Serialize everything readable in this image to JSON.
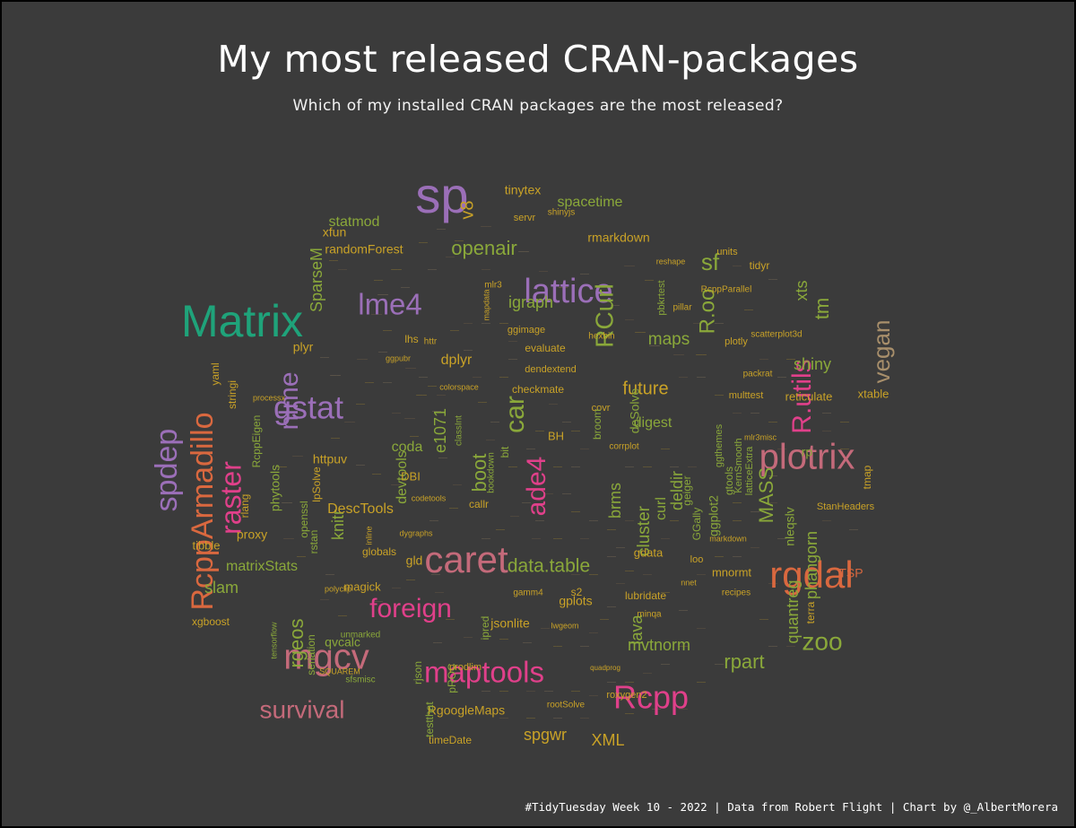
{
  "title": "My most released CRAN-packages",
  "subtitle": "Which of my installed CRAN packages are the most released?",
  "caption": "#TidyTuesday Week 10 - 2022 | Data from Robert Flight | Chart by @_AlbertMorera",
  "colors": {
    "background": "#3b3b3b",
    "purple": "#9b6fb8",
    "green": "#1fa37a",
    "pink": "#e0408a",
    "rose": "#c46a7a",
    "orange": "#d9683f",
    "olive": "#8aa83a",
    "gold": "#c9a227",
    "tan": "#a88f6b",
    "brown": "#8a6d4a"
  },
  "chart_data": {
    "type": "wordcloud",
    "words": [
      {
        "w": "sp",
        "c": "purple"
      },
      {
        "w": "Matrix",
        "c": "green"
      },
      {
        "w": "caret",
        "c": "rose"
      },
      {
        "w": "rgdal",
        "c": "orange"
      },
      {
        "w": "plotrix",
        "c": "rose"
      },
      {
        "w": "mgcv",
        "c": "rose"
      },
      {
        "w": "RcppArmadillo",
        "c": "orange"
      },
      {
        "w": "lattice",
        "c": "purple"
      },
      {
        "w": "maptools",
        "c": "pink"
      },
      {
        "w": "spdep",
        "c": "purple"
      },
      {
        "w": "raster",
        "c": "pink"
      },
      {
        "w": "Rcpp",
        "c": "pink"
      },
      {
        "w": "gstat",
        "c": "purple"
      },
      {
        "w": "nlme",
        "c": "purple"
      },
      {
        "w": "lme4",
        "c": "purple"
      },
      {
        "w": "foreign",
        "c": "pink"
      },
      {
        "w": "survival",
        "c": "rose"
      },
      {
        "w": "RCurl",
        "c": "olive"
      },
      {
        "w": "R.utils",
        "c": "pink"
      },
      {
        "w": "car",
        "c": "olive"
      },
      {
        "w": "ade4",
        "c": "pink"
      },
      {
        "w": "zoo",
        "c": "olive"
      },
      {
        "w": "vegan",
        "c": "tan"
      },
      {
        "w": "R.oo",
        "c": "olive"
      },
      {
        "w": "boot",
        "c": "olive"
      },
      {
        "w": "data.table",
        "c": "olive"
      },
      {
        "w": "rgeos",
        "c": "olive"
      },
      {
        "w": "rpart",
        "c": "olive"
      },
      {
        "w": "mvtnorm",
        "c": "olive"
      },
      {
        "w": "MASS",
        "c": "olive"
      },
      {
        "w": "SparseM",
        "c": "olive"
      },
      {
        "w": "openair",
        "c": "olive"
      },
      {
        "w": "sf",
        "c": "olive"
      },
      {
        "w": "igraph",
        "c": "olive"
      },
      {
        "w": "maps",
        "c": "olive"
      },
      {
        "w": "future",
        "c": "gold"
      },
      {
        "w": "digest",
        "c": "olive"
      },
      {
        "w": "shiny",
        "c": "olive"
      },
      {
        "w": "cluster",
        "c": "olive"
      },
      {
        "w": "brms",
        "c": "olive"
      },
      {
        "w": "quantreg",
        "c": "olive"
      },
      {
        "w": "phangorn",
        "c": "olive"
      },
      {
        "w": "knitr",
        "c": "olive"
      },
      {
        "w": "e1071",
        "c": "olive"
      },
      {
        "w": "xts",
        "c": "olive"
      },
      {
        "w": "tm",
        "c": "olive"
      },
      {
        "w": "lava",
        "c": "olive"
      },
      {
        "w": "curl",
        "c": "olive"
      },
      {
        "w": "deldir",
        "c": "olive"
      },
      {
        "w": "v8",
        "c": "gold"
      },
      {
        "w": "spacetime",
        "c": "olive"
      },
      {
        "w": "statmod",
        "c": "olive"
      },
      {
        "w": "matrixStats",
        "c": "olive"
      },
      {
        "w": "DescTools",
        "c": "gold"
      },
      {
        "w": "slam",
        "c": "olive"
      },
      {
        "w": "spgwr",
        "c": "gold"
      },
      {
        "w": "XML",
        "c": "gold"
      },
      {
        "w": "randomForest",
        "c": "gold"
      },
      {
        "w": "rmarkdown",
        "c": "gold"
      },
      {
        "w": "tinytex",
        "c": "gold"
      },
      {
        "w": "xfun",
        "c": "gold"
      },
      {
        "w": "plyr",
        "c": "gold"
      },
      {
        "w": "dplyr",
        "c": "gold"
      },
      {
        "w": "coda",
        "c": "olive"
      },
      {
        "w": "devtools",
        "c": "olive"
      },
      {
        "w": "httpuv",
        "c": "gold"
      },
      {
        "w": "proxy",
        "c": "gold"
      },
      {
        "w": "tibble",
        "c": "gold"
      },
      {
        "w": "xgboost",
        "c": "gold"
      },
      {
        "w": "magick",
        "c": "gold"
      },
      {
        "w": "globals",
        "c": "gold"
      },
      {
        "w": "gld",
        "c": "gold"
      },
      {
        "w": "jsonlite",
        "c": "gold"
      },
      {
        "w": "gplots",
        "c": "gold"
      },
      {
        "w": "RgoogleMaps",
        "c": "gold"
      },
      {
        "w": "timeDate",
        "c": "gold"
      },
      {
        "w": "nleqslv",
        "c": "olive"
      },
      {
        "w": "reticulate",
        "c": "gold"
      },
      {
        "w": "xtable",
        "c": "gold"
      },
      {
        "w": "checkmate",
        "c": "gold"
      },
      {
        "w": "dendextend",
        "c": "gold"
      },
      {
        "w": "evaluate",
        "c": "gold"
      },
      {
        "w": "ggimage",
        "c": "gold"
      },
      {
        "w": "deSolve",
        "c": "olive"
      },
      {
        "w": "gdata",
        "c": "gold"
      },
      {
        "w": "lubridate",
        "c": "gold"
      },
      {
        "w": "mnormt",
        "c": "gold"
      },
      {
        "w": "terra",
        "c": "gold"
      },
      {
        "w": "TSP",
        "c": "orange"
      },
      {
        "w": "rp",
        "c": "olive"
      },
      {
        "w": "tmap",
        "c": "gold"
      },
      {
        "w": "StanHeaders",
        "c": "gold"
      },
      {
        "w": "stringi",
        "c": "gold"
      },
      {
        "w": "yaml",
        "c": "gold"
      },
      {
        "w": "RcppEigen",
        "c": "olive"
      },
      {
        "w": "phytools",
        "c": "olive"
      },
      {
        "w": "openssl",
        "c": "olive"
      },
      {
        "w": "rstan",
        "c": "olive"
      },
      {
        "w": "seriation",
        "c": "olive"
      },
      {
        "w": "rjson",
        "c": "olive"
      },
      {
        "w": "pROC",
        "c": "olive"
      },
      {
        "w": "ipred",
        "c": "olive"
      },
      {
        "w": "testthat",
        "c": "olive"
      },
      {
        "w": "plotly",
        "c": "gold"
      },
      {
        "w": "tidyr",
        "c": "gold"
      },
      {
        "w": "units",
        "c": "gold"
      },
      {
        "w": "scatterplot3d",
        "c": "gold"
      },
      {
        "w": "RcppParallel",
        "c": "gold"
      },
      {
        "w": "pbkrtest",
        "c": "olive"
      },
      {
        "w": "hexbin",
        "c": "gold"
      },
      {
        "w": "lhs",
        "c": "gold"
      },
      {
        "w": "httr",
        "c": "gold"
      },
      {
        "w": "DBI",
        "c": "gold"
      },
      {
        "w": "bit",
        "c": "olive"
      },
      {
        "w": "bookdown",
        "c": "olive"
      },
      {
        "w": "classInt",
        "c": "olive"
      },
      {
        "w": "callr",
        "c": "gold"
      },
      {
        "w": "gamm4",
        "c": "gold"
      },
      {
        "w": "s2",
        "c": "gold"
      },
      {
        "w": "ggplot2",
        "c": "olive"
      },
      {
        "w": "GGally",
        "c": "olive"
      },
      {
        "w": "geiger",
        "c": "olive"
      },
      {
        "w": "gtools",
        "c": "olive"
      },
      {
        "w": "latticeExtra",
        "c": "olive"
      },
      {
        "w": "KernSmooth",
        "c": "olive"
      },
      {
        "w": "ggthemes",
        "c": "olive"
      },
      {
        "w": "multtest",
        "c": "gold"
      },
      {
        "w": "packrat",
        "c": "gold"
      },
      {
        "w": "BH",
        "c": "gold"
      },
      {
        "w": "corrplot",
        "c": "gold"
      },
      {
        "w": "covr",
        "c": "gold"
      },
      {
        "w": "broom",
        "c": "olive"
      },
      {
        "w": "prodlim",
        "c": "gold"
      },
      {
        "w": "quadprog",
        "c": "gold"
      },
      {
        "w": "rootSolve",
        "c": "gold"
      },
      {
        "w": "roxygen2",
        "c": "gold"
      },
      {
        "w": "nnet",
        "c": "gold"
      },
      {
        "w": "loo",
        "c": "gold"
      },
      {
        "w": "recipes",
        "c": "gold"
      },
      {
        "w": "markdown",
        "c": "gold"
      },
      {
        "w": "minqa",
        "c": "gold"
      },
      {
        "w": "servr",
        "c": "gold"
      },
      {
        "w": "shinyjs",
        "c": "gold"
      },
      {
        "w": "reshape",
        "c": "gold"
      },
      {
        "w": "pillar",
        "c": "gold"
      },
      {
        "w": "mapdata",
        "c": "gold"
      },
      {
        "w": "mlr3",
        "c": "gold"
      },
      {
        "w": "dygraphs",
        "c": "gold"
      },
      {
        "w": "codetools",
        "c": "gold"
      },
      {
        "w": "polyclip",
        "c": "gold"
      },
      {
        "w": "lwgeom",
        "c": "gold"
      },
      {
        "w": "qvcalc",
        "c": "olive"
      },
      {
        "w": "sfsmisc",
        "c": "olive"
      },
      {
        "w": "inline",
        "c": "gold"
      },
      {
        "w": "rlang",
        "c": "gold"
      },
      {
        "w": "colorspace",
        "c": "gold"
      },
      {
        "w": "processx",
        "c": "gold"
      },
      {
        "w": "ggpubr",
        "c": "gold"
      },
      {
        "w": "mlr3misc",
        "c": "gold"
      },
      {
        "w": "lpSolve",
        "c": "gold"
      },
      {
        "w": "SQUAREM",
        "c": "gold"
      },
      {
        "w": "tensorflow",
        "c": "olive"
      },
      {
        "w": "unmarked",
        "c": "olive"
      }
    ]
  }
}
